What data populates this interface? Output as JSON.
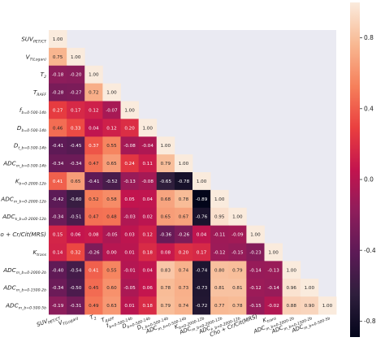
{
  "chart_data": {
    "type": "heatmap",
    "title": "",
    "xlabel": "",
    "ylabel": "",
    "lower_triangle": true,
    "labels": [
      "SUV_PET/CT",
      "V_T(Logan)",
      "T_2",
      "T_RAFF",
      "f_b=0-500-14b",
      "D_b=0-500-14b",
      "D_t_b=0-500-14b",
      "ADC_m_b=0-500-14b",
      "K_b=0-2000-12b",
      "ADC_m_b=0-2000-12b",
      "ADC_k_b=0-2000-12b",
      "Cho + Cr/Cit(MRS)",
      "K_trans",
      "ADC_m_b=0-2000-2b",
      "ADC_m_b=0-1500-2b",
      "ADC_m_b=0-500-5b"
    ],
    "values": [
      [
        "1.00"
      ],
      [
        "0.75",
        "1.00"
      ],
      [
        "-0.18",
        "-0.20",
        "1.00"
      ],
      [
        "-0.28",
        "-0.27",
        "0.72",
        "1.00"
      ],
      [
        "0.27",
        "0.17",
        "0.12",
        "-0.07",
        "1.00"
      ],
      [
        "0.46",
        "0.33",
        "0.04",
        "0.12",
        "0.20",
        "1.00"
      ],
      [
        "-0.41",
        "-0.45",
        "0.37",
        "0.55",
        "-0.08",
        "-0.04",
        "1.00"
      ],
      [
        "-0.34",
        "-0.34",
        "0.47",
        "0.65",
        "0.24",
        "0.11",
        "0.79",
        "1.00"
      ],
      [
        "0.41",
        "0.65",
        "-0.41",
        "-0.52",
        "-0.13",
        "-0.08",
        "-0.65",
        "-0.78",
        "1.00"
      ],
      [
        "-0.42",
        "-0.60",
        "0.52",
        "0.58",
        "0.05",
        "0.04",
        "0.68",
        "0.78",
        "-0.89",
        "1.00"
      ],
      [
        "-0.34",
        "-0.51",
        "0.47",
        "0.48",
        "-0.03",
        "0.02",
        "0.65",
        "0.67",
        "-0.76",
        "0.95",
        "1.00"
      ],
      [
        "0.15",
        "0.06",
        "0.08",
        "-0.05",
        "0.03",
        "0.12",
        "-0.36",
        "-0.26",
        "0.04",
        "-0.11",
        "-0.09",
        "1.00"
      ],
      [
        "0.14",
        "0.32",
        "-0.26",
        "0.00",
        "0.01",
        "0.18",
        "0.08",
        "0.20",
        "0.17",
        "-0.12",
        "-0.15",
        "-0.23",
        "1.00"
      ],
      [
        "-0.40",
        "-0.54",
        "0.41",
        "0.55",
        "-0.01",
        "0.04",
        "0.83",
        "0.74",
        "-0.74",
        "0.80",
        "0.79",
        "-0.14",
        "-0.13",
        "1.00"
      ],
      [
        "-0.34",
        "-0.50",
        "0.45",
        "0.60",
        "-0.05",
        "0.06",
        "0.78",
        "0.73",
        "-0.73",
        "0.81",
        "0.81",
        "-0.12",
        "-0.14",
        "0.96",
        "1.00"
      ],
      [
        "-0.19",
        "-0.31",
        "0.49",
        "0.63",
        "0.01",
        "0.18",
        "0.79",
        "0.74",
        "-0.72",
        "0.77",
        "0.78",
        "-0.15",
        "-0.02",
        "0.88",
        "0.90",
        "1.00"
      ]
    ],
    "colorbar": {
      "colormap": "rocket",
      "range": [
        -0.89,
        1.0
      ],
      "ticks": [
        "0.8",
        "0.4",
        "0.0",
        "-0.4",
        "-0.8"
      ]
    },
    "grid": false,
    "legend": "colorbar at right"
  }
}
